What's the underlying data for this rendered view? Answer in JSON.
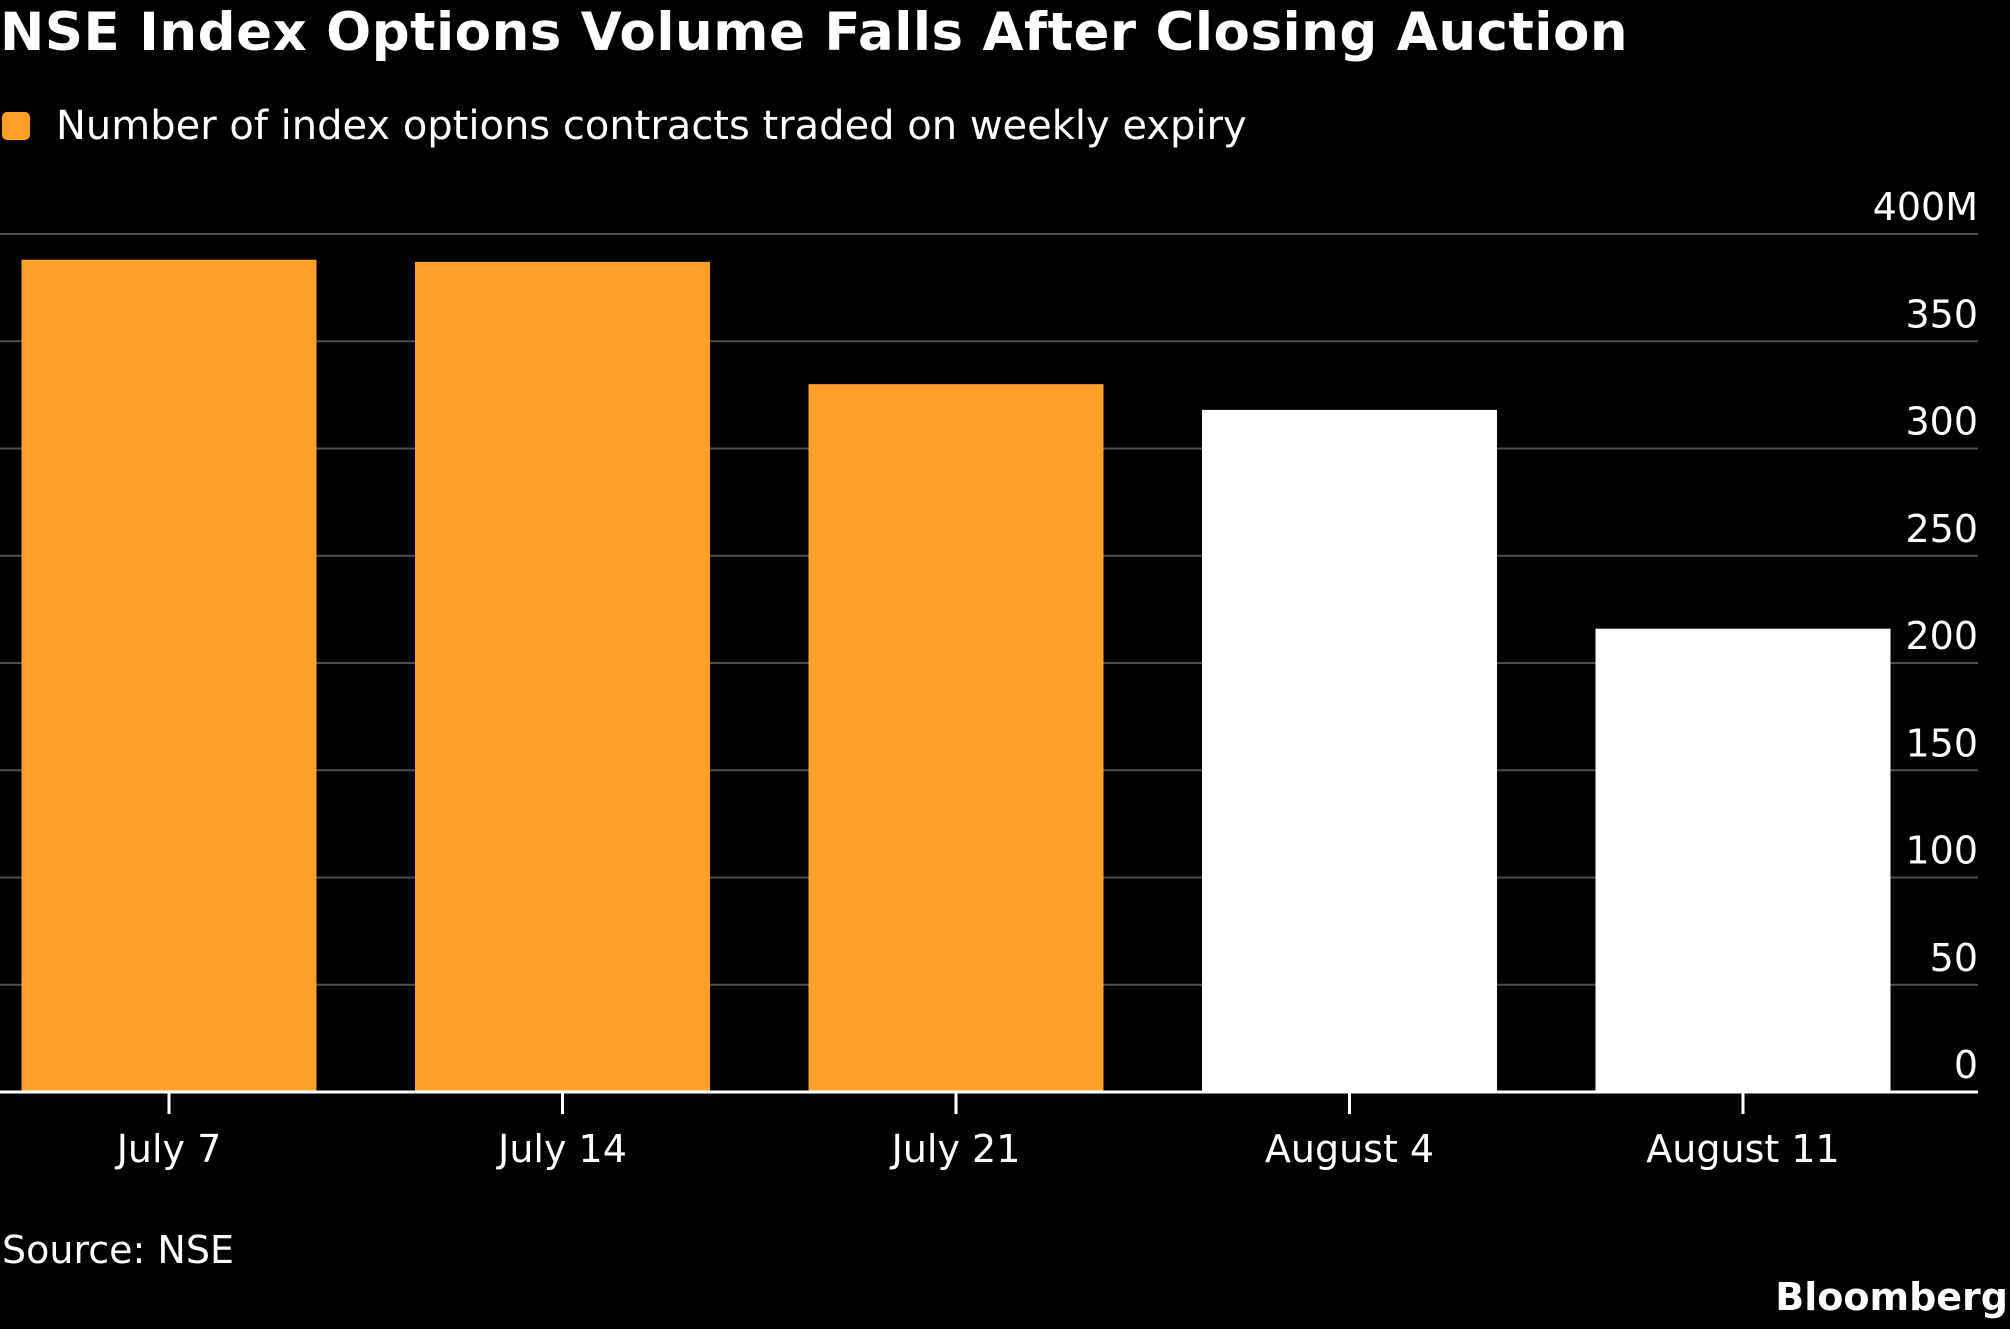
{
  "colors": {
    "background": "#000000",
    "text": "#ffffff",
    "gridline": "#4d4d4d",
    "baseline": "#ffffff",
    "accent": "#ffa02a",
    "secondary_bar": "#ffffff"
  },
  "chart_data": {
    "type": "bar",
    "title": "NSE Index Options Volume Falls After Closing Auction",
    "legend": {
      "position": "top-left",
      "entries": [
        {
          "label": "Number of index options contracts traded on weekly expiry",
          "color": "#ffa02a"
        }
      ]
    },
    "categories": [
      "July 7",
      "July 14",
      "July 21",
      "August 4",
      "August 11"
    ],
    "series": [
      {
        "name": "Number of index options contracts traded on weekly expiry",
        "values": [
          388,
          387,
          330,
          318,
          216
        ],
        "colors": [
          "#ffa02a",
          "#ffa02a",
          "#ffa02a",
          "#ffffff",
          "#ffffff"
        ]
      }
    ],
    "y_axis": {
      "position": "right",
      "ylim": [
        0,
        400
      ],
      "ticks": [
        0,
        50,
        100,
        150,
        200,
        250,
        300,
        350,
        400
      ],
      "tick_labels": [
        "0",
        "50",
        "100",
        "150",
        "200",
        "250",
        "300",
        "350",
        "400M"
      ]
    },
    "xlabel": "",
    "ylabel": "",
    "grid": true
  },
  "footer": {
    "source": "Source: NSE",
    "brand": "Bloomberg"
  }
}
